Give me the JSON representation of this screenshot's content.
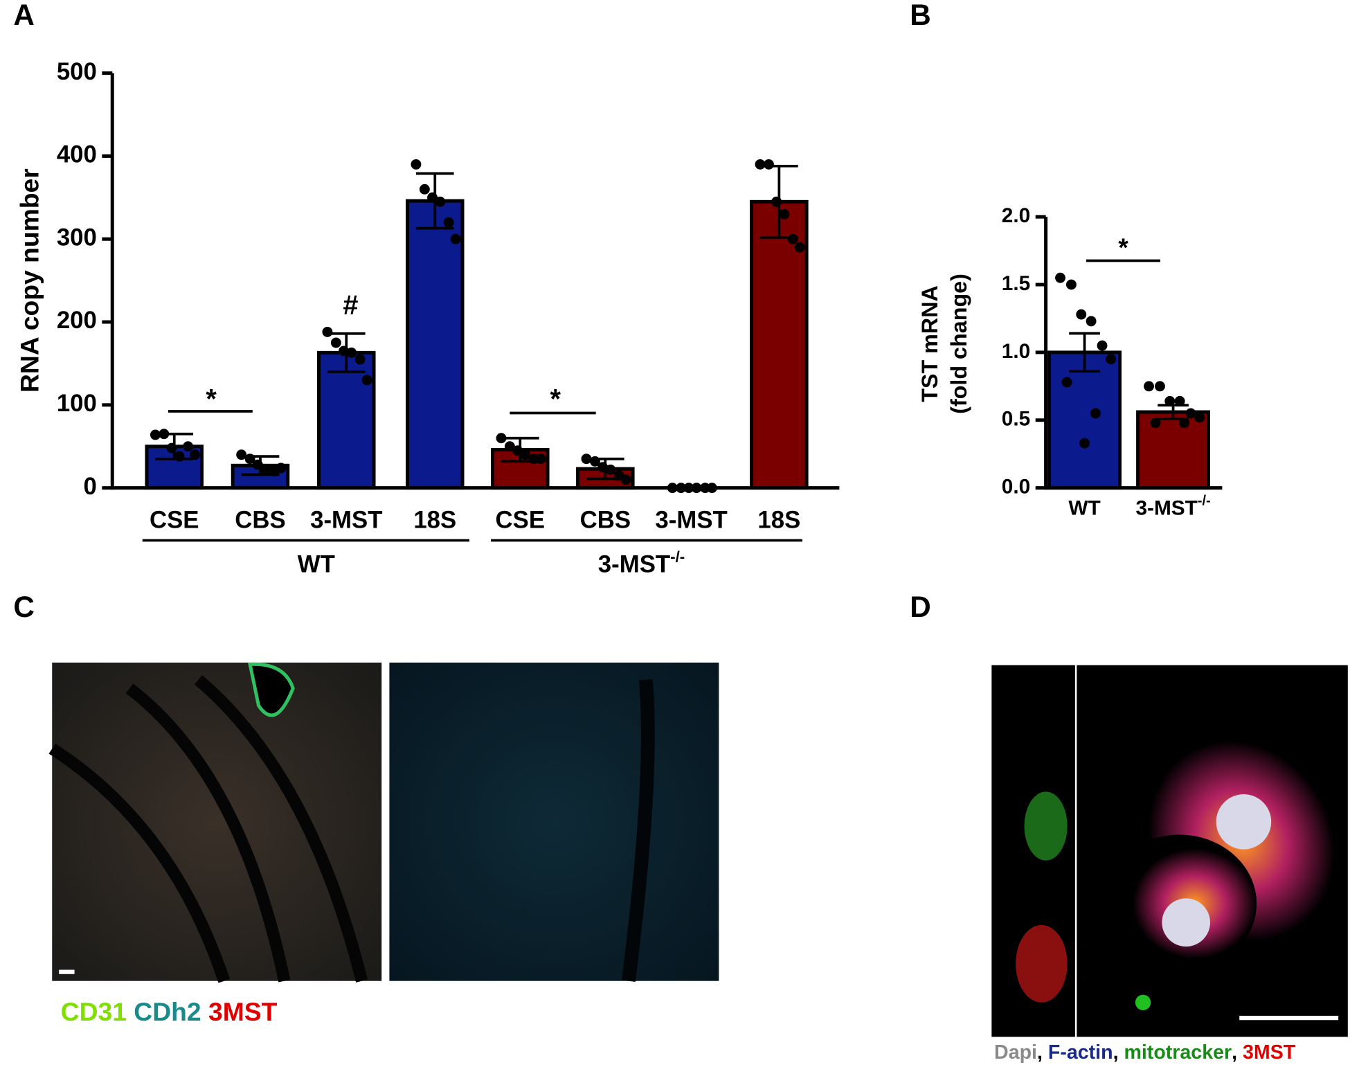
{
  "panels": [
    "A",
    "B",
    "C",
    "D"
  ],
  "chart_data": [
    {
      "type": "bar",
      "ylabel": "RNA copy number",
      "ylim": [
        0,
        500
      ],
      "yticks": [
        0,
        100,
        200,
        300,
        400,
        500
      ],
      "groups": [
        {
          "name": "WT",
          "color": "#0b1a8c",
          "categories": [
            "CSE",
            "CBS",
            "3-MST",
            "18S"
          ],
          "values": [
            50,
            27,
            163,
            346
          ],
          "errors": [
            15,
            11,
            23,
            33
          ],
          "points": [
            [
              64,
              65,
              48,
              38,
              50,
              40
            ],
            [
              40,
              35,
              28,
              22,
              20,
              24
            ],
            [
              188,
              175,
              165,
              163,
              155,
              130
            ],
            [
              390,
              360,
              350,
              345,
              320,
              300
            ]
          ]
        },
        {
          "name": "3-MST",
          "sup": "-/-",
          "color": "#7a0000",
          "categories": [
            "CSE",
            "CBS",
            "3-MST",
            "18S"
          ],
          "values": [
            46,
            23,
            0,
            345
          ],
          "errors": [
            14,
            12,
            0,
            43
          ],
          "points": [
            [
              60,
              50,
              45,
              40,
              35,
              35
            ],
            [
              35,
              32,
              25,
              22,
              15,
              10
            ],
            [
              0,
              0,
              0,
              0,
              0,
              0
            ],
            [
              390,
              390,
              345,
              330,
              300,
              290
            ]
          ]
        }
      ],
      "annotations": [
        "*",
        "*",
        "#"
      ]
    },
    {
      "type": "bar",
      "ylabel": [
        "TST mRNA",
        "(fold change)"
      ],
      "ylim": [
        0,
        2
      ],
      "yticks": [
        {
          "value": 0,
          "label": "0.0"
        },
        0.5,
        {
          "value": 1,
          "label": "1.0"
        },
        1.5,
        {
          "value": 2,
          "label": "2.0"
        }
      ],
      "categories": [
        "WT",
        "3-MST"
      ],
      "category_sups": [
        null,
        "-/-"
      ],
      "colors": [
        "#0b1a8c",
        "#7a0000"
      ],
      "values": [
        1.0,
        0.56
      ],
      "errors": [
        0.14,
        0.05
      ],
      "points": [
        [
          1.55,
          1.5,
          1.28,
          1.23,
          1.05,
          0.95,
          0.78,
          0.55,
          0.33
        ],
        [
          0.75,
          0.75,
          0.64,
          0.64,
          0.55,
          0.52,
          0.48,
          0.48
        ]
      ],
      "annotations": [
        "*"
      ]
    }
  ],
  "legends": {
    "C": [
      {
        "text": "CD31",
        "color": "#7fe000"
      },
      {
        "text": " CDh2",
        "color": "#1a8a8a"
      },
      {
        "text": " 3MST",
        "color": "#e00000"
      }
    ],
    "D": [
      {
        "text": "Dapi",
        "color": "#8a8a8a"
      },
      {
        "text": ", ",
        "color": "#000000"
      },
      {
        "text": "F-actin",
        "color": "#1a2a8a"
      },
      {
        "text": ", ",
        "color": "#000000"
      },
      {
        "text": "mitotracker",
        "color": "#1a8a1a"
      },
      {
        "text": ", ",
        "color": "#000000"
      },
      {
        "text": "3MST",
        "color": "#e00000"
      }
    ]
  }
}
